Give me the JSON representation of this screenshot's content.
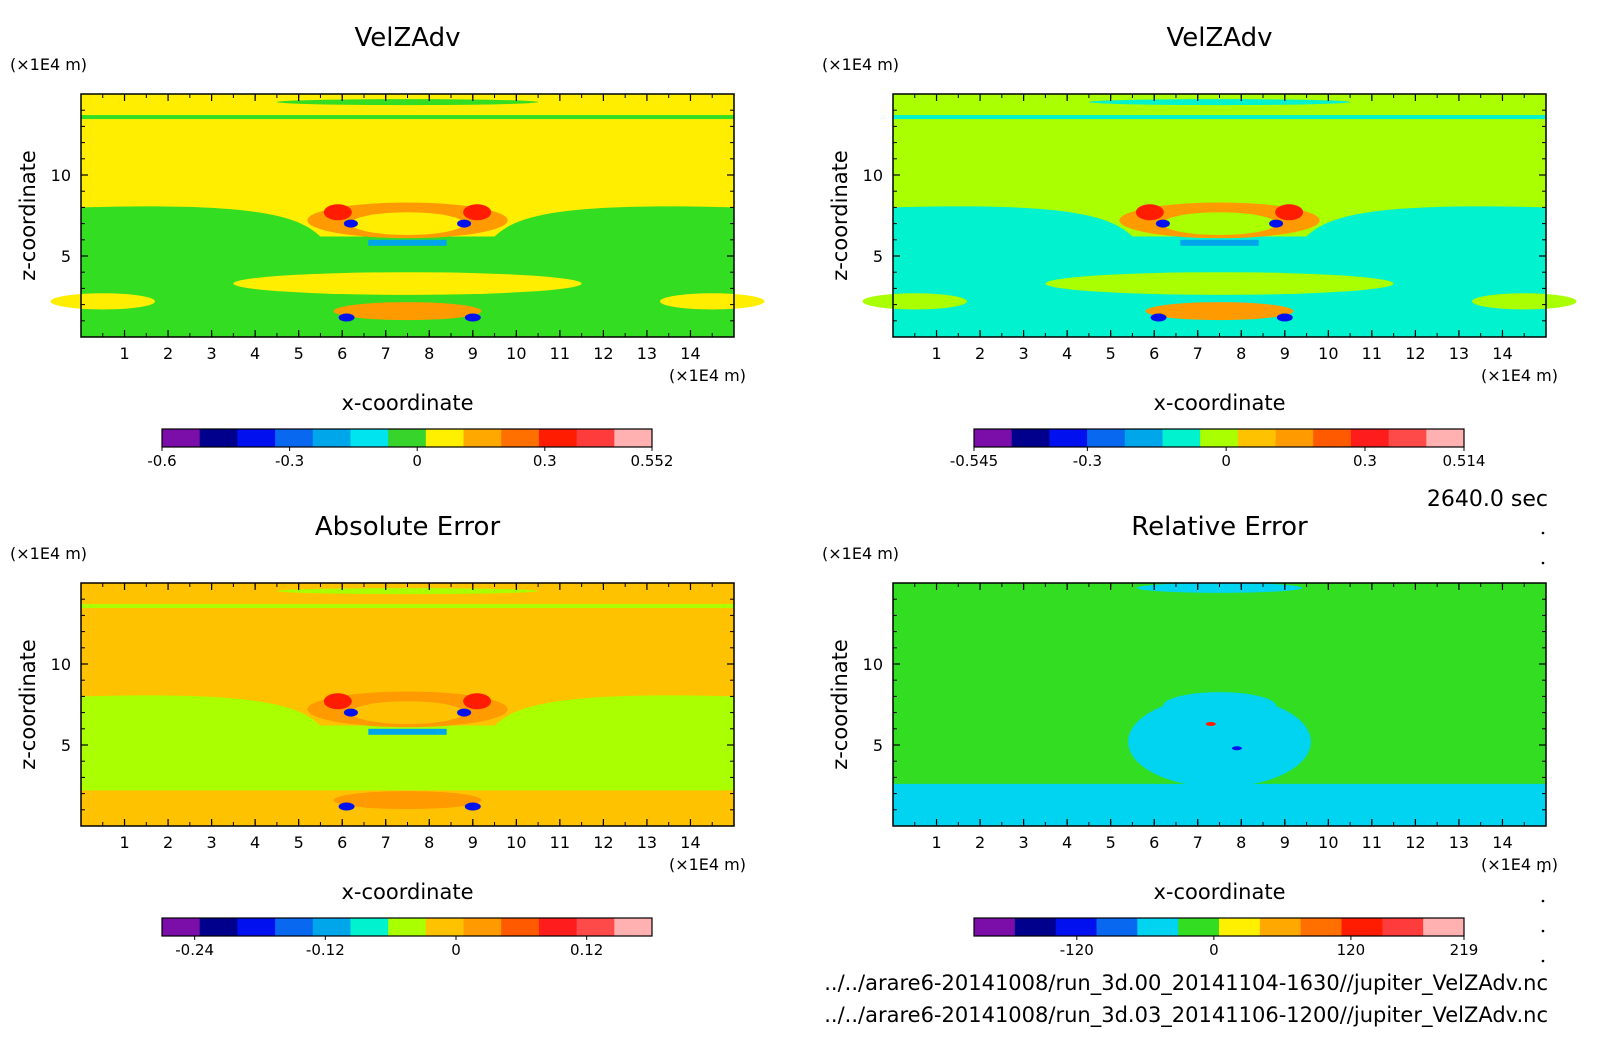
{
  "figure": {
    "time_label": "2640.0 sec",
    "files": [
      "../../arare6-20141008/run_3d.00_20141104-1630//jupiter_VelZAdv.nc",
      "../../arare6-20141008/run_3d.03_20141106-1200//jupiter_VelZAdv.nc"
    ]
  },
  "chart_data": [
    {
      "type": "heatmap",
      "title": "VelZAdv",
      "xlabel": "x-coordinate",
      "ylabel": "z-coordinate",
      "x_unit": "(×1E4 m)",
      "y_unit": "(×1E4 m)",
      "xlim": [
        0,
        15
      ],
      "ylim": [
        0,
        15
      ],
      "x_ticks": [
        1,
        2,
        3,
        4,
        5,
        6,
        7,
        8,
        9,
        10,
        11,
        12,
        13,
        14
      ],
      "y_ticks": [
        5,
        10
      ],
      "colorbar": {
        "range": [
          -0.6,
          0.552
        ],
        "tick_values": [
          -0.6,
          -0.3,
          0,
          0.3,
          0.552
        ],
        "tick_labels": [
          "-0.6",
          "-0.3",
          "0",
          "0.3",
          "0.552"
        ],
        "colors": [
          "#7b0da8",
          "#00008c",
          "#0010ee",
          "#0868f0",
          "#00a6ea",
          "#00e4f0",
          "#37d42b",
          "#fff000",
          "#ffa800",
          "#ff7000",
          "#ff1c00",
          "#ff3c3c",
          "#ffb0b0"
        ]
      },
      "dominant_color_layers": [
        "#33dd22",
        "#ffee00"
      ]
    },
    {
      "type": "heatmap",
      "title": "VelZAdv",
      "xlabel": "x-coordinate",
      "ylabel": "z-coordinate",
      "x_unit": "(×1E4 m)",
      "y_unit": "(×1E4 m)",
      "xlim": [
        0,
        15
      ],
      "ylim": [
        0,
        15
      ],
      "x_ticks": [
        1,
        2,
        3,
        4,
        5,
        6,
        7,
        8,
        9,
        10,
        11,
        12,
        13,
        14
      ],
      "y_ticks": [
        5,
        10
      ],
      "colorbar": {
        "range": [
          -0.545,
          0.514
        ],
        "tick_values": [
          -0.545,
          -0.3,
          0,
          0.3,
          0.514
        ],
        "tick_labels": [
          "-0.545",
          "-0.3",
          "0",
          "0.3",
          "0.514"
        ],
        "colors": [
          "#7b0da8",
          "#00008c",
          "#0010ee",
          "#0868f0",
          "#00a6ea",
          "#00f2cf",
          "#aaff00",
          "#ffc200",
          "#ff9a00",
          "#ff5a00",
          "#ff1c1c",
          "#ff4a4a",
          "#ffb0b0"
        ]
      },
      "dominant_color_layers": [
        "#00f2cf",
        "#aaff00"
      ]
    },
    {
      "type": "heatmap",
      "title": "Absolute Error",
      "xlabel": "x-coordinate",
      "ylabel": "z-coordinate",
      "x_unit": "(×1E4 m)",
      "y_unit": "(×1E4 m)",
      "xlim": [
        0,
        15
      ],
      "ylim": [
        0,
        15
      ],
      "x_ticks": [
        1,
        2,
        3,
        4,
        5,
        6,
        7,
        8,
        9,
        10,
        11,
        12,
        13,
        14
      ],
      "y_ticks": [
        5,
        10
      ],
      "colorbar": {
        "range": [
          -0.27,
          0.18
        ],
        "tick_values": [
          -0.24,
          -0.12,
          0,
          0.12
        ],
        "tick_labels": [
          "-0.24",
          "-0.12",
          "0",
          "0.12"
        ],
        "colors": [
          "#7b0da8",
          "#00008c",
          "#0010ee",
          "#0868f0",
          "#00a6ea",
          "#00f2cf",
          "#aaff00",
          "#ffc200",
          "#ff9a00",
          "#ff5a00",
          "#ff1c1c",
          "#ff4a4a",
          "#ffb0b0"
        ]
      },
      "dominant_color_layers": [
        "#aaff00",
        "#ffc200"
      ]
    },
    {
      "type": "heatmap",
      "title": "Relative Error",
      "xlabel": "x-coordinate",
      "ylabel": "z-coordinate",
      "x_unit": "(×1E4 m)",
      "y_unit": "(×1E4 m)",
      "xlim": [
        0,
        15
      ],
      "ylim": [
        0,
        15
      ],
      "x_ticks": [
        1,
        2,
        3,
        4,
        5,
        6,
        7,
        8,
        9,
        10,
        11,
        12,
        13,
        14
      ],
      "y_ticks": [
        5,
        10
      ],
      "colorbar": {
        "range": [
          -210,
          219
        ],
        "tick_values": [
          -120,
          0,
          120,
          219
        ],
        "tick_labels": [
          "-120",
          "0",
          "120",
          "219"
        ],
        "colors": [
          "#7b0da8",
          "#00008c",
          "#0010ee",
          "#0868f0",
          "#00d4f0",
          "#33dd22",
          "#fff000",
          "#ffa800",
          "#ff7000",
          "#ff1c00",
          "#ff3c3c",
          "#ffb0b0"
        ]
      },
      "dominant_color_layers": [
        "#33dd22",
        "#00d4f0"
      ]
    }
  ]
}
